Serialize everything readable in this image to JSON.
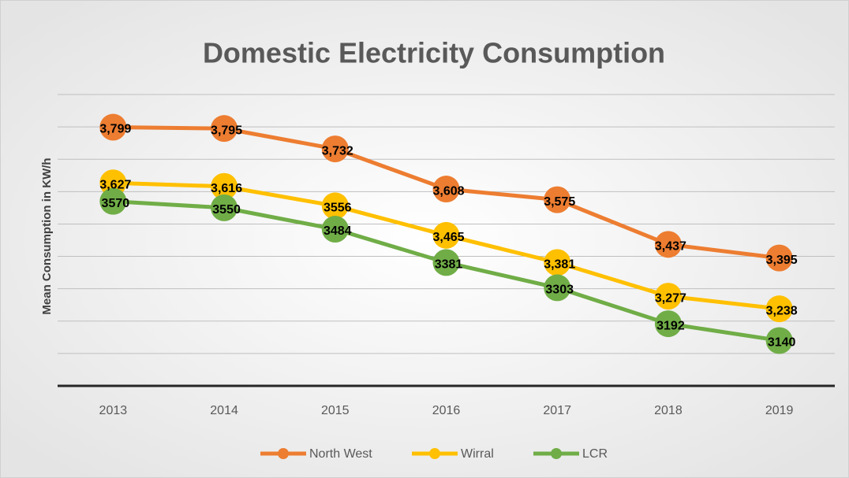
{
  "chart_data": {
    "type": "line",
    "title": "Domestic Electricity Consumption",
    "y_label": "Mean Consumption in KW/h",
    "categories": [
      "2013",
      "2014",
      "2015",
      "2016",
      "2017",
      "2018",
      "2019"
    ],
    "series": [
      {
        "name": "North West",
        "color": "#ED7D31",
        "values": [
          3799,
          3795,
          3732,
          3608,
          3575,
          3437,
          3395
        ],
        "value_labels": [
          "3,799",
          "3,795",
          "3,732",
          "3,608",
          "3,575",
          "3,437",
          "3,395"
        ]
      },
      {
        "name": "Wirral",
        "color": "#FFC000",
        "values": [
          3627,
          3616,
          3556,
          3465,
          3381,
          3277,
          3238
        ],
        "value_labels": [
          "3,627",
          "3,616",
          "3556",
          "3,465",
          "3,381",
          "3,277",
          "3,238"
        ]
      },
      {
        "name": "LCR",
        "color": "#70AD47",
        "values": [
          3570,
          3550,
          3484,
          3381,
          3303,
          3192,
          3140
        ]
      }
    ],
    "ylim": [
      3000,
      3900
    ],
    "yticks": [
      3000,
      3100,
      3200,
      3300,
      3400,
      3500,
      3600,
      3700,
      3800,
      3900
    ],
    "grid": true,
    "legend": "bottom"
  }
}
